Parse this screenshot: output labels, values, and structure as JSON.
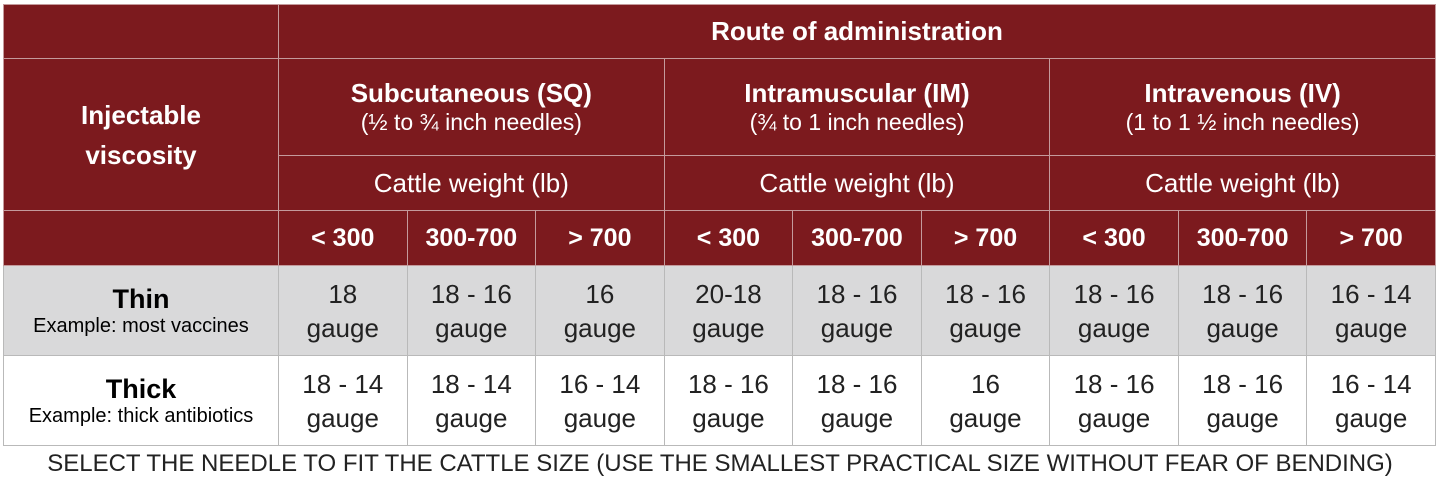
{
  "table": {
    "corner": "Injectable viscosity",
    "route_header": "Route of administration",
    "routes": [
      {
        "name": "Subcutaneous (SQ)",
        "needles": "(½ to ¾ inch needles)",
        "weight_label": "Cattle weight (lb)",
        "weights": [
          "< 300",
          "300-700",
          "> 700"
        ]
      },
      {
        "name": "Intramuscular (IM)",
        "needles": "(¾ to 1 inch needles)",
        "weight_label": "Cattle weight (lb)",
        "weights": [
          "< 300",
          "300-700",
          "> 700"
        ]
      },
      {
        "name": "Intravenous (IV)",
        "needles": "(1 to 1 ½ inch needles)",
        "weight_label": "Cattle weight (lb)",
        "weights": [
          "< 300",
          "300-700",
          "> 700"
        ]
      }
    ],
    "rows": [
      {
        "name": "Thin",
        "example": "Example: most vaccines",
        "cells": [
          {
            "size": "18",
            "unit": "gauge"
          },
          {
            "size": "18 - 16",
            "unit": "gauge"
          },
          {
            "size": "16",
            "unit": "gauge"
          },
          {
            "size": "20-18",
            "unit": "gauge"
          },
          {
            "size": "18 - 16",
            "unit": "gauge"
          },
          {
            "size": "18 - 16",
            "unit": "gauge"
          },
          {
            "size": "18 - 16",
            "unit": "gauge"
          },
          {
            "size": "18 - 16",
            "unit": "gauge"
          },
          {
            "size": "16 - 14",
            "unit": "gauge"
          }
        ]
      },
      {
        "name": "Thick",
        "example": "Example: thick antibiotics",
        "cells": [
          {
            "size": "18 - 14",
            "unit": "gauge"
          },
          {
            "size": "18 - 14",
            "unit": "gauge"
          },
          {
            "size": "16 - 14",
            "unit": "gauge"
          },
          {
            "size": "18 - 16",
            "unit": "gauge"
          },
          {
            "size": "18 - 16",
            "unit": "gauge"
          },
          {
            "size": "16",
            "unit": "gauge"
          },
          {
            "size": "18 - 16",
            "unit": "gauge"
          },
          {
            "size": "18 - 16",
            "unit": "gauge"
          },
          {
            "size": "16 - 14",
            "unit": "gauge"
          }
        ]
      }
    ]
  },
  "footnote": "SELECT THE NEEDLE TO FIT THE CATTLE SIZE (USE THE SMALLEST PRACTICAL SIZE WITHOUT FEAR OF BENDING)"
}
